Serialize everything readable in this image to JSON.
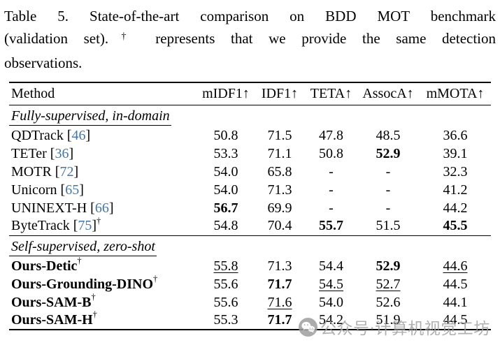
{
  "caption": {
    "line1": "Table 5.  State-of-the-art comparison on BDD MOT benchmark",
    "line2_before": "(validation set).",
    "dagger": "†",
    "line2_after": " represents that we provide the same detection",
    "line3": "observations."
  },
  "table": {
    "columns": [
      "Method",
      "mIDF1↑",
      "IDF1↑",
      "TETA↑",
      "AssocA↑",
      "mMOTA↑"
    ],
    "citation_color": "#4176ad",
    "sections": [
      {
        "heading": "Fully-supervised, in-domain",
        "rows": [
          {
            "method": "QDTrack",
            "cite": "46",
            "dagger": false,
            "bold_method": false,
            "values": [
              "50.8",
              "71.5",
              "47.8",
              "48.5",
              "36.6"
            ],
            "styles": [
              "",
              "",
              "",
              "",
              ""
            ]
          },
          {
            "method": "TETer",
            "cite": "36",
            "dagger": false,
            "bold_method": false,
            "values": [
              "53.3",
              "71.1",
              "50.8",
              "52.9",
              "39.1"
            ],
            "styles": [
              "",
              "",
              "",
              "b",
              ""
            ]
          },
          {
            "method": "MOTR",
            "cite": "72",
            "dagger": false,
            "bold_method": false,
            "values": [
              "54.0",
              "65.8",
              "-",
              "-",
              "32.3"
            ],
            "styles": [
              "",
              "",
              "",
              "",
              ""
            ]
          },
          {
            "method": "Unicorn",
            "cite": "65",
            "dagger": false,
            "bold_method": false,
            "values": [
              "54.0",
              "71.3",
              "-",
              "-",
              "41.2"
            ],
            "styles": [
              "",
              "",
              "",
              "",
              ""
            ]
          },
          {
            "method": "UNINEXT-H",
            "cite": "66",
            "dagger": false,
            "bold_method": false,
            "values": [
              "56.7",
              "69.9",
              "-",
              "-",
              "44.2"
            ],
            "styles": [
              "b",
              "",
              "",
              "",
              ""
            ]
          },
          {
            "method": "ByteTrack",
            "cite": "75",
            "dagger": true,
            "bold_method": false,
            "values": [
              "54.8",
              "70.4",
              "55.7",
              "51.5",
              "45.5"
            ],
            "styles": [
              "",
              "",
              "b",
              "",
              "b"
            ]
          }
        ]
      },
      {
        "heading": "Self-supervised, zero-shot",
        "rows": [
          {
            "method": "Ours-Detic",
            "cite": "",
            "dagger": true,
            "bold_method": true,
            "values": [
              "55.8",
              "71.3",
              "54.4",
              "52.9",
              "44.6"
            ],
            "styles": [
              "u",
              "",
              "",
              "b",
              "u"
            ]
          },
          {
            "method": "Ours-Grounding-DINO",
            "cite": "",
            "dagger": true,
            "bold_method": true,
            "values": [
              "55.6",
              "71.7",
              "54.5",
              "52.7",
              "44.5"
            ],
            "styles": [
              "",
              "b",
              "u",
              "u",
              ""
            ]
          },
          {
            "method": "Ours-SAM-B",
            "cite": "",
            "dagger": true,
            "bold_method": true,
            "values": [
              "55.6",
              "71.6",
              "54.0",
              "52.6",
              "44.1"
            ],
            "styles": [
              "",
              "u",
              "",
              "",
              ""
            ]
          },
          {
            "method": "Ours-SAM-H",
            "cite": "",
            "dagger": true,
            "bold_method": true,
            "values": [
              "55.3",
              "71.7",
              "54.2",
              "51.9",
              "44.5"
            ],
            "styles": [
              "",
              "b",
              "",
              "",
              ""
            ]
          }
        ]
      }
    ]
  },
  "watermark": {
    "icon": "wechat-icon",
    "text": "公众号·计算机视觉工坊",
    "color": "#a3a3a3"
  }
}
